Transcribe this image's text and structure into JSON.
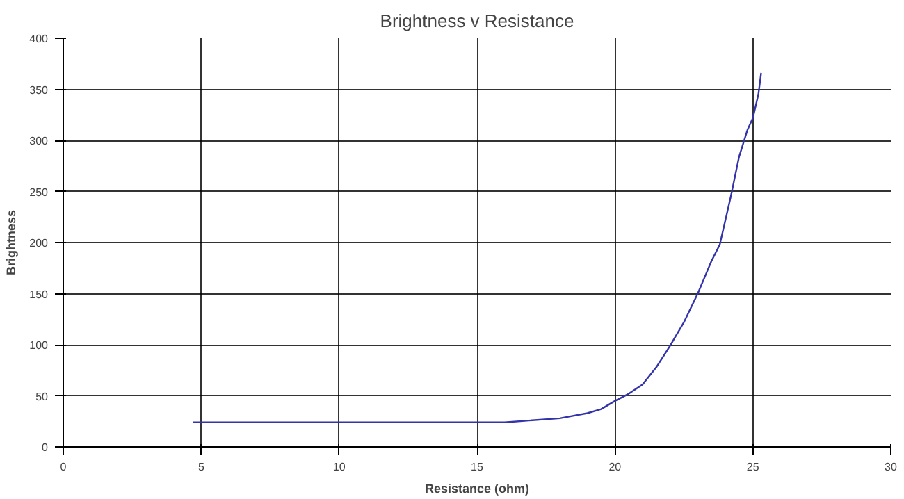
{
  "chart_data": {
    "type": "line",
    "title": "Brightness v Resistance",
    "xlabel": "Resistance (ohm)",
    "ylabel": "Brightness",
    "series": [
      {
        "color": "#3333aa",
        "x": [
          4.7,
          10,
          15,
          16,
          17,
          18,
          19,
          19.5,
          20,
          20.5,
          21,
          21.5,
          22,
          22.5,
          23,
          23.5,
          23.8,
          24.2,
          24.5,
          24.8,
          25,
          25.2,
          25.3
        ],
        "values": [
          24,
          24,
          24,
          24,
          26,
          28,
          33,
          37,
          45,
          52,
          61,
          78,
          99,
          122,
          150,
          182,
          198,
          245,
          284,
          310,
          322,
          345,
          366
        ]
      }
    ],
    "xlim": [
      0,
      30
    ],
    "ylim": [
      0,
      400
    ],
    "xticks": [
      0,
      5,
      10,
      15,
      20,
      25,
      30
    ],
    "yticks": [
      0,
      50,
      100,
      150,
      200,
      250,
      300,
      350,
      400
    ],
    "grid": true,
    "marker": "none",
    "line_style": "solid"
  }
}
